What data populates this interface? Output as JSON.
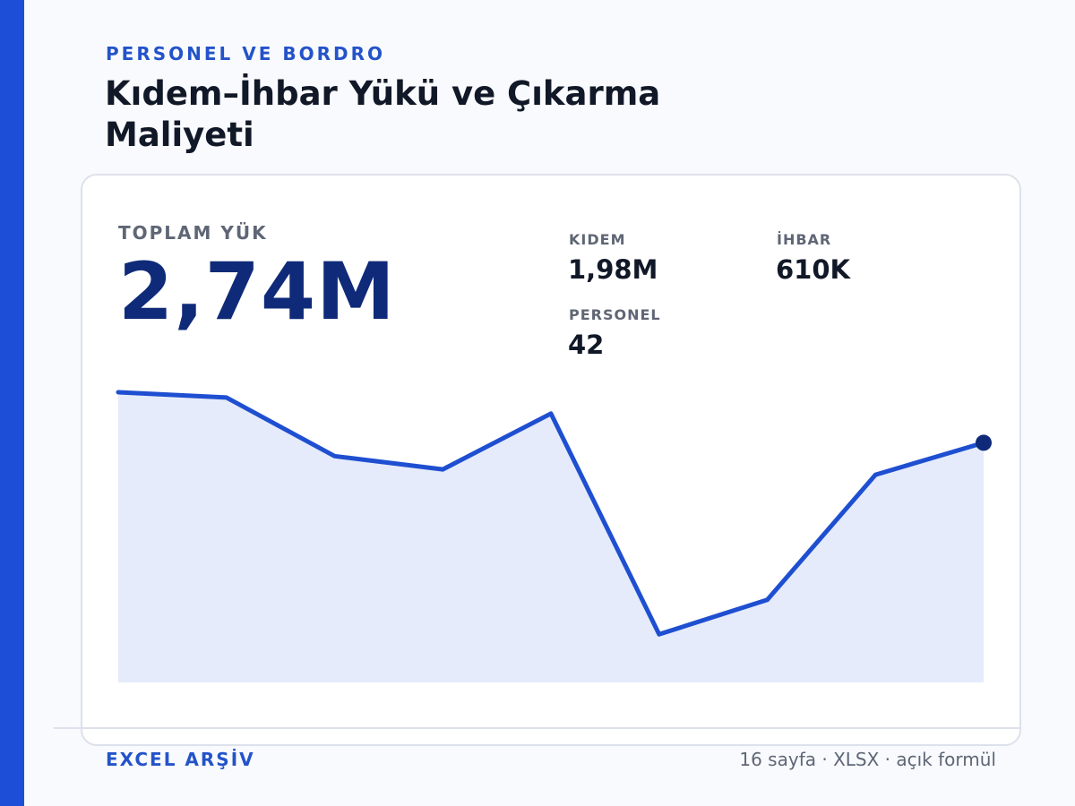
{
  "header": {
    "eyebrow": "PERSONEL VE BORDRO",
    "title": "Kıdem–İhbar Yükü ve Çıkarma Maliyeti"
  },
  "kpi": {
    "label": "TOPLAM YÜK",
    "value": "2,74M"
  },
  "stats": [
    {
      "label": "KIDEM",
      "value": "1,98M"
    },
    {
      "label": "İHBAR",
      "value": "610K"
    },
    {
      "label": "PERSONEL",
      "value": "42"
    }
  ],
  "footer": {
    "left": "EXCEL ARŞİV",
    "right": "16 sayfa · XLSX · açık formül"
  },
  "colors": {
    "accent": "#1d4ed8",
    "line": "#1f4fd1",
    "area": "#e5ebfb",
    "end_point": "#0f2a78"
  },
  "chart_data": {
    "type": "area",
    "title": "",
    "xlabel": "",
    "ylabel": "",
    "x": [
      1,
      2,
      3,
      4,
      5,
      6,
      7,
      8,
      9
    ],
    "values": [
      100,
      98,
      76,
      71,
      92,
      9,
      22,
      69,
      81
    ],
    "ylim": [
      0,
      100
    ],
    "grid": false,
    "legend": "none",
    "highlight_last_point": true
  }
}
